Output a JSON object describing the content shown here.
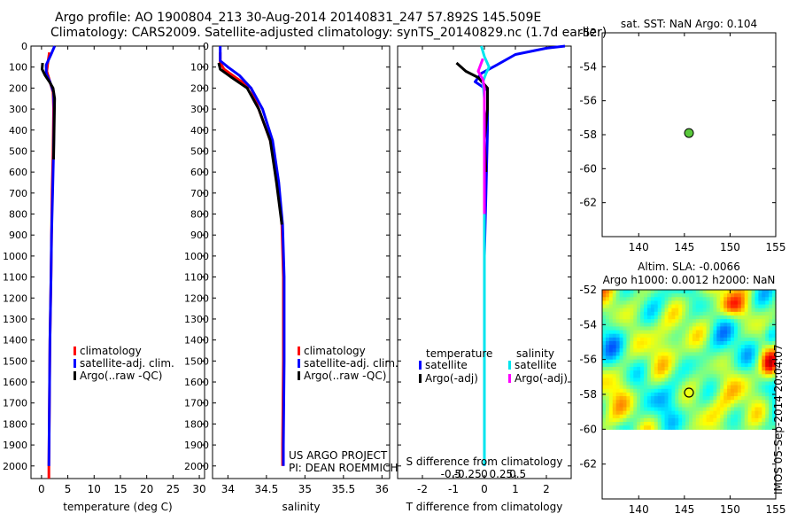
{
  "header": {
    "title_line1": "Argo profile: AO 1900804_213 30-Aug-2014 20140831_247 57.892S 145.509E",
    "title_line2": "Climatology: CARS2009. Satellite-adjusted climatology: synTS_20140829.nc (1.7d earlier)"
  },
  "depth_ticks": [
    0,
    100,
    200,
    300,
    400,
    500,
    600,
    700,
    800,
    900,
    1000,
    1100,
    1200,
    1300,
    1400,
    1500,
    1600,
    1700,
    1800,
    1900,
    2000
  ],
  "stamp": "IMOS 05-Sep-2014 20:04:07",
  "chart_data": [
    {
      "type": "line",
      "name": "temperature-profile",
      "xlabel": "temperature (deg C)",
      "xlim": [
        -2,
        31
      ],
      "ylim": [
        2060,
        0
      ],
      "xticks": [
        0,
        5,
        10,
        15,
        20,
        25,
        30
      ],
      "legend": [
        "climatology",
        "satellite-adj. clim.",
        "Argo(..raw -QC)"
      ],
      "legend_colors": [
        "#ff0000",
        "#0000ff",
        "#000000"
      ],
      "series": [
        {
          "key": "climatology",
          "color": "#ff0000",
          "points": [
            [
              1.5,
              30
            ],
            [
              1.2,
              80
            ],
            [
              1.0,
              120
            ],
            [
              1.6,
              170
            ],
            [
              2.2,
              220
            ],
            [
              2.3,
              300
            ],
            [
              2.2,
              500
            ],
            [
              2.0,
              700
            ],
            [
              1.9,
              900
            ],
            [
              1.8,
              1100
            ],
            [
              1.6,
              1400
            ],
            [
              1.5,
              1700
            ],
            [
              1.4,
              2000
            ],
            [
              1.4,
              2060
            ]
          ]
        },
        {
          "key": "satellite",
          "color": "#0000ff",
          "points": [
            [
              2.5,
              0
            ],
            [
              1.8,
              40
            ],
            [
              0.9,
              90
            ],
            [
              0.9,
              130
            ],
            [
              1.6,
              170
            ],
            [
              2.3,
              220
            ],
            [
              2.4,
              300
            ],
            [
              2.3,
              500
            ],
            [
              2.1,
              700
            ],
            [
              1.9,
              900
            ],
            [
              1.8,
              1100
            ],
            [
              1.6,
              1400
            ],
            [
              1.5,
              1700
            ],
            [
              1.4,
              2000
            ]
          ]
        },
        {
          "key": "argo",
          "color": "#000000",
          "points": [
            [
              0.2,
              80
            ],
            [
              0.1,
              110
            ],
            [
              0.7,
              140
            ],
            [
              1.5,
              170
            ],
            [
              2.2,
              200
            ],
            [
              2.5,
              250
            ],
            [
              2.3,
              540
            ]
          ]
        }
      ]
    },
    {
      "type": "line",
      "name": "salinity-profile",
      "xlabel": "salinity",
      "xlim": [
        33.8,
        36.1
      ],
      "ylim": [
        2060,
        0
      ],
      "xticks": [
        34,
        34.5,
        35,
        35.5,
        36
      ],
      "legend": [
        "climatology",
        "satellite-adj. clim.",
        "Argo(..raw -QC)"
      ],
      "legend_colors": [
        "#ff0000",
        "#0000ff",
        "#000000"
      ],
      "series": [
        {
          "key": "climatology",
          "color": "#ff0000",
          "points": [
            [
              33.9,
              30
            ],
            [
              33.9,
              80
            ],
            [
              33.95,
              110
            ],
            [
              34.1,
              150
            ],
            [
              34.3,
              200
            ],
            [
              34.4,
              300
            ],
            [
              34.55,
              450
            ],
            [
              34.65,
              650
            ],
            [
              34.7,
              850
            ],
            [
              34.72,
              1100
            ],
            [
              34.72,
              1500
            ],
            [
              34.71,
              1900
            ],
            [
              34.71,
              2000
            ]
          ]
        },
        {
          "key": "satellite",
          "color": "#0000ff",
          "points": [
            [
              33.9,
              0
            ],
            [
              33.9,
              70
            ],
            [
              34.0,
              100
            ],
            [
              34.15,
              140
            ],
            [
              34.3,
              200
            ],
            [
              34.45,
              300
            ],
            [
              34.58,
              450
            ],
            [
              34.66,
              650
            ],
            [
              34.71,
              850
            ],
            [
              34.73,
              1100
            ],
            [
              34.73,
              1500
            ],
            [
              34.72,
              1900
            ],
            [
              34.72,
              2000
            ]
          ]
        },
        {
          "key": "argo",
          "color": "#000000",
          "points": [
            [
              33.88,
              80
            ],
            [
              33.9,
              110
            ],
            [
              34.05,
              150
            ],
            [
              34.25,
              200
            ],
            [
              34.4,
              300
            ],
            [
              34.55,
              450
            ],
            [
              34.63,
              650
            ],
            [
              34.7,
              850
            ]
          ]
        }
      ],
      "annotation": [
        "US ARGO PROJECT",
        "PI: DEAN ROEMMICH"
      ]
    },
    {
      "type": "line",
      "name": "difference-profile",
      "xlabel": "T difference from climatology",
      "xlabel_top": "S difference from climatology",
      "xlim": [
        -2.8,
        2.8
      ],
      "ylim": [
        2060,
        0
      ],
      "xticks": [
        -2,
        -1,
        0,
        1,
        2
      ],
      "sticks_values": [
        -0.5,
        -0.25,
        0,
        0.25,
        0.5
      ],
      "sticks_labels": [
        "-0.5",
        "-0.25",
        "0",
        "0.25",
        "0.5"
      ],
      "s_scale": 2.15,
      "legend_head": [
        "temperature",
        "salinity"
      ],
      "legend_t": [
        "satellite",
        "Argo(-adj)"
      ],
      "legend_t_colors": [
        "#0000ff",
        "#000000"
      ],
      "legend_s": [
        "satellite",
        "Argo(-adj)"
      ],
      "legend_s_colors": [
        "#00e5ee",
        "#ff00ff"
      ],
      "series": [
        {
          "key": "t_satellite",
          "color": "#0000ff",
          "points": [
            [
              2.6,
              0
            ],
            [
              2.0,
              10
            ],
            [
              1.0,
              40
            ],
            [
              0.4,
              90
            ],
            [
              -0.1,
              130
            ],
            [
              -0.3,
              170
            ],
            [
              0.1,
              210
            ],
            [
              0.1,
              400
            ],
            [
              0.05,
              700
            ],
            [
              0.0,
              1000
            ],
            [
              0.0,
              1500
            ],
            [
              0.0,
              2000
            ]
          ]
        },
        {
          "key": "t_argo",
          "color": "#000000",
          "points": [
            [
              -0.9,
              80
            ],
            [
              -0.6,
              120
            ],
            [
              -0.2,
              150
            ],
            [
              0.1,
              200
            ],
            [
              0.1,
              300
            ],
            [
              0.0,
              450
            ],
            [
              0.05,
              600
            ]
          ]
        },
        {
          "key": "s_satellite",
          "color": "#00e5ee",
          "points": [
            [
              -0.1,
              0
            ],
            [
              0.0,
              50
            ],
            [
              0.15,
              100
            ],
            [
              0.05,
              130
            ],
            [
              -0.05,
              170
            ],
            [
              0.0,
              250
            ],
            [
              0.0,
              500
            ],
            [
              0.0,
              1000
            ],
            [
              0.0,
              2000
            ]
          ]
        },
        {
          "key": "s_argo",
          "color": "#ff00ff",
          "points": [
            [
              -0.05,
              60
            ],
            [
              -0.2,
              120
            ],
            [
              -0.05,
              160
            ],
            [
              0.0,
              200
            ],
            [
              0.0,
              400
            ],
            [
              0.0,
              600
            ],
            [
              0.0,
              800
            ]
          ]
        }
      ]
    },
    {
      "type": "scatter",
      "name": "sst-map",
      "title": "sat. SST: NaN Argo: 0.104",
      "xlim": [
        136,
        155
      ],
      "ylim": [
        -64,
        -52
      ],
      "xticks": [
        140,
        145,
        150,
        155
      ],
      "yticks": [
        -52,
        -54,
        -56,
        -58,
        -60,
        -62
      ],
      "point": [
        145.5,
        -57.9
      ],
      "point_color": "#5ac83c"
    },
    {
      "type": "heatmap",
      "name": "sla-map",
      "title_line1": "Altim. SLA: -0.0066",
      "title_line2": "Argo h1000: 0.0012 h2000: NaN",
      "xlim": [
        136,
        155
      ],
      "ylim": [
        -64,
        -52
      ],
      "xticks": [
        140,
        145,
        150,
        155
      ],
      "yticks": [
        -52,
        -54,
        -56,
        -58,
        -60,
        -62
      ],
      "data_ylim": [
        -60,
        -52
      ],
      "point": [
        145.5,
        -57.9
      ]
    }
  ]
}
